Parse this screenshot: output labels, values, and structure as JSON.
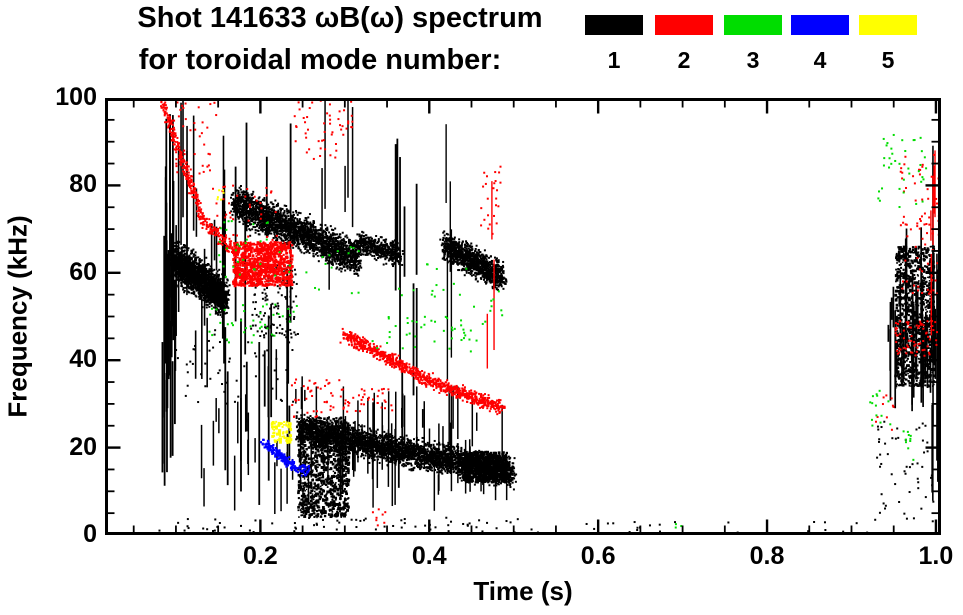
{
  "chart": {
    "title_line1": "Shot 141633 ωB(ω) spectrum",
    "title_line2": "for toroidal mode number:",
    "xlabel": "Time (s)",
    "ylabel": "Frequency (kHz)"
  },
  "chart_data": {
    "type": "scatter",
    "title": "Shot 141633 ωB(ω) spectrum for toroidal mode number",
    "xlabel": "Time (s)",
    "ylabel": "Frequency (kHz)",
    "xlim": [
      0.016,
      1.006
    ],
    "ylim": [
      0,
      100
    ],
    "grid": false,
    "x_major_ticks": [
      0.2,
      0.4,
      0.6,
      0.8,
      1.0
    ],
    "x_tick_labels": [
      "0.2",
      "0.4",
      "0.6",
      "0.8",
      "1.0"
    ],
    "x_minor_step": 0.05,
    "y_major_ticks": [
      0,
      20,
      40,
      60,
      80,
      100
    ],
    "y_tick_labels": [
      "0",
      "20",
      "40",
      "60",
      "80",
      "100"
    ],
    "y_minor_step": 5,
    "legend": {
      "position": "top-right",
      "entries": [
        {
          "label": "1",
          "color": "#000000"
        },
        {
          "label": "2",
          "color": "#ff0000"
        },
        {
          "label": "3",
          "color": "#00dd00"
        },
        {
          "label": "4",
          "color": "#0000ff"
        },
        {
          "label": "5",
          "color": "#ffff00"
        }
      ]
    },
    "clusters": [
      {
        "mode": 1,
        "type": "streaks",
        "t": [
          0.084,
          0.1
        ],
        "f": [
          8,
          100
        ],
        "n": 26,
        "w": 1.8,
        "bias": 0.55,
        "lmin": 0.1,
        "lvar": 0.55
      },
      {
        "mode": 1,
        "type": "track",
        "t": [
          0.098,
          0.158
        ],
        "f": [
          63,
          54
        ],
        "jf": 6,
        "jt": 0.006,
        "n": 2200,
        "s": 2
      },
      {
        "mode": 1,
        "type": "streaks",
        "t": [
          0.1,
          0.165
        ],
        "f": [
          25,
          100
        ],
        "n": 20,
        "w": 1.6
      },
      {
        "mode": 1,
        "type": "streaks",
        "t": [
          0.155,
          0.245
        ],
        "f": [
          5,
          100
        ],
        "n": 16,
        "w": 1.8
      },
      {
        "mode": 1,
        "type": "track",
        "t": [
          0.17,
          0.315
        ],
        "f": [
          76,
          63
        ],
        "jf": 5.5,
        "jt": 0.006,
        "n": 2400,
        "s": 2
      },
      {
        "mode": 1,
        "type": "track",
        "t": [
          0.315,
          0.365
        ],
        "f": [
          67,
          64
        ],
        "jf": 3.5,
        "n": 500,
        "s": 2
      },
      {
        "mode": 1,
        "type": "streaks",
        "t": [
          0.13,
          0.26
        ],
        "f": [
          4,
          45
        ],
        "n": 28,
        "w": 1.5,
        "lmin": 0.06,
        "lvar": 0.3
      },
      {
        "mode": 1,
        "type": "track",
        "t": [
          0.245,
          0.5
        ],
        "f": [
          24,
          14
        ],
        "jf": 4.5,
        "jt": 0.004,
        "n": 3600,
        "s": 2
      },
      {
        "mode": 1,
        "type": "blob",
        "t": [
          0.245,
          0.305
        ],
        "f": [
          4,
          27
        ],
        "n": 1000,
        "s": 2
      },
      {
        "mode": 1,
        "type": "streaks",
        "t": [
          0.25,
          0.5
        ],
        "f": [
          5,
          34
        ],
        "n": 60,
        "w": 1.5,
        "lmin": 0.1,
        "lvar": 0.5
      },
      {
        "mode": 1,
        "type": "streaks",
        "t": [
          0.358,
          0.388
        ],
        "f": [
          10,
          100
        ],
        "n": 9,
        "w": 1.8
      },
      {
        "mode": 1,
        "type": "streaks",
        "t": [
          0.27,
          0.31
        ],
        "f": [
          30,
          100
        ],
        "n": 6,
        "w": 1.5
      },
      {
        "mode": 1,
        "type": "streaks",
        "t": [
          0.418,
          0.432
        ],
        "f": [
          35,
          98
        ],
        "n": 4,
        "w": 1.4
      },
      {
        "mode": 1,
        "type": "track",
        "t": [
          0.418,
          0.487
        ],
        "f": [
          66,
          59
        ],
        "jf": 4.5,
        "n": 1200,
        "s": 2
      },
      {
        "mode": 1,
        "type": "blob",
        "t": [
          0.44,
          0.492
        ],
        "f": [
          12,
          19
        ],
        "n": 600,
        "s": 2
      },
      {
        "mode": 1,
        "type": "dots",
        "t": [
          0.07,
          0.53
        ],
        "f": [
          0.5,
          4
        ],
        "n": 70,
        "s": 2
      },
      {
        "mode": 1,
        "type": "dots",
        "t": [
          0.53,
          0.93
        ],
        "f": [
          0.5,
          3
        ],
        "n": 22,
        "s": 2
      },
      {
        "mode": 1,
        "type": "dots",
        "t": [
          0.1,
          0.24
        ],
        "f": [
          30,
          48
        ],
        "n": 60,
        "s": 2
      },
      {
        "mode": 1,
        "type": "dots",
        "t": [
          0.19,
          0.245
        ],
        "f": [
          45,
          62
        ],
        "n": 120,
        "s": 2
      },
      {
        "mode": 1,
        "type": "streaks",
        "t": [
          0.943,
          1.0
        ],
        "f": [
          28,
          72
        ],
        "n": 45,
        "w": 1.7,
        "bias": 0.5
      },
      {
        "mode": 1,
        "type": "blob",
        "t": [
          0.952,
          0.998
        ],
        "f": [
          34,
          66
        ],
        "n": 1000,
        "s": 2
      },
      {
        "mode": 1,
        "type": "streaks",
        "t": [
          0.992,
          1.005
        ],
        "f": [
          4,
          100
        ],
        "n": 9,
        "w": 1.6
      },
      {
        "mode": 1,
        "type": "dots",
        "t": [
          0.925,
          1.0
        ],
        "f": [
          3,
          26
        ],
        "n": 55,
        "s": 2
      },
      {
        "mode": 2,
        "type": "track",
        "t": [
          0.084,
          0.132
        ],
        "f": [
          99,
          72
        ],
        "jf": 2,
        "jt": 0.003,
        "n": 260,
        "s": 2
      },
      {
        "mode": 2,
        "type": "track",
        "t": [
          0.132,
          0.168
        ],
        "f": [
          72,
          65
        ],
        "jf": 2,
        "n": 110,
        "s": 2
      },
      {
        "mode": 2,
        "type": "blob",
        "t": [
          0.168,
          0.238
        ],
        "f": [
          57,
          67
        ],
        "n": 950,
        "s": 2
      },
      {
        "mode": 2,
        "type": "dots",
        "t": [
          0.24,
          0.31
        ],
        "f": [
          86,
          100
        ],
        "n": 55,
        "s": 2
      },
      {
        "mode": 2,
        "type": "dots",
        "t": [
          0.095,
          0.15
        ],
        "f": [
          82,
          100
        ],
        "n": 45,
        "s": 2
      },
      {
        "mode": 2,
        "type": "dots",
        "t": [
          0.14,
          0.22
        ],
        "f": [
          66,
          80
        ],
        "n": 45,
        "s": 2
      },
      {
        "mode": 2,
        "type": "track",
        "t": [
          0.298,
          0.402
        ],
        "f": [
          46,
          35
        ],
        "jf": 2.2,
        "n": 480,
        "s": 2
      },
      {
        "mode": 2,
        "type": "track",
        "t": [
          0.402,
          0.487
        ],
        "f": [
          35,
          29
        ],
        "jf": 2.2,
        "n": 400,
        "s": 2
      },
      {
        "mode": 2,
        "type": "dots",
        "t": [
          0.235,
          0.3
        ],
        "f": [
          27,
          36
        ],
        "n": 45,
        "s": 2
      },
      {
        "mode": 2,
        "type": "dots",
        "t": [
          0.3,
          0.36
        ],
        "f": [
          28,
          34
        ],
        "n": 35,
        "s": 2
      },
      {
        "mode": 2,
        "type": "streaks",
        "t": [
          0.468,
          0.478
        ],
        "f": [
          30,
          84
        ],
        "n": 3,
        "w": 1.4
      },
      {
        "mode": 2,
        "type": "dots",
        "t": [
          0.46,
          0.485
        ],
        "f": [
          68,
          85
        ],
        "n": 25,
        "s": 2
      },
      {
        "mode": 2,
        "type": "dots",
        "t": [
          0.952,
          1.002
        ],
        "f": [
          41,
          49
        ],
        "n": 70,
        "s": 2
      },
      {
        "mode": 2,
        "type": "dots",
        "t": [
          0.958,
          1.004
        ],
        "f": [
          55,
          88
        ],
        "n": 80,
        "s": 2
      },
      {
        "mode": 2,
        "type": "streaks",
        "t": [
          0.994,
          1.005
        ],
        "f": [
          40,
          88
        ],
        "n": 5,
        "w": 1.4
      },
      {
        "mode": 2,
        "type": "dots",
        "t": [
          0.33,
          0.35
        ],
        "f": [
          1,
          6
        ],
        "n": 8,
        "s": 2
      },
      {
        "mode": 2,
        "type": "dots",
        "t": [
          0.925,
          0.95
        ],
        "f": [
          24,
          32
        ],
        "n": 10,
        "s": 2
      },
      {
        "mode": 3,
        "type": "dots",
        "t": [
          0.138,
          0.245
        ],
        "f": [
          44,
          53
        ],
        "n": 40,
        "s": 2
      },
      {
        "mode": 3,
        "type": "dots",
        "t": [
          0.148,
          0.235
        ],
        "f": [
          59,
          72
        ],
        "n": 32,
        "s": 2
      },
      {
        "mode": 3,
        "type": "dots",
        "t": [
          0.25,
          0.32
        ],
        "f": [
          55,
          66
        ],
        "n": 14,
        "s": 2
      },
      {
        "mode": 3,
        "type": "dots",
        "t": [
          0.33,
          0.46
        ],
        "f": [
          42,
          50
        ],
        "n": 42,
        "s": 2
      },
      {
        "mode": 3,
        "type": "dots",
        "t": [
          0.36,
          0.45
        ],
        "f": [
          54,
          62
        ],
        "n": 14,
        "s": 2
      },
      {
        "mode": 3,
        "type": "dots",
        "t": [
          0.45,
          0.49
        ],
        "f": [
          48,
          58
        ],
        "n": 10,
        "s": 2
      },
      {
        "mode": 3,
        "type": "dots",
        "t": [
          0.93,
          0.99
        ],
        "f": [
          75,
          92
        ],
        "n": 38,
        "s": 2
      },
      {
        "mode": 3,
        "type": "dots",
        "t": [
          0.922,
          0.948
        ],
        "f": [
          25,
          33
        ],
        "n": 14,
        "s": 2
      },
      {
        "mode": 3,
        "type": "dots",
        "t": [
          0.958,
          0.978
        ],
        "f": [
          17,
          24
        ],
        "n": 10,
        "s": 2
      },
      {
        "mode": 3,
        "type": "dots",
        "t": [
          0.688,
          0.712
        ],
        "f": [
          1,
          3
        ],
        "n": 3,
        "s": 2
      },
      {
        "mode": 4,
        "type": "track",
        "t": [
          0.205,
          0.245
        ],
        "f": [
          21,
          15
        ],
        "jf": 1.2,
        "n": 150,
        "s": 2.2
      },
      {
        "mode": 4,
        "type": "dots",
        "t": [
          0.245,
          0.258
        ],
        "f": [
          13.5,
          16
        ],
        "n": 30,
        "s": 2
      },
      {
        "mode": 5,
        "type": "blob",
        "t": [
          0.214,
          0.236
        ],
        "f": [
          21,
          26
        ],
        "n": 70,
        "s": 2.2
      },
      {
        "mode": 5,
        "type": "dots",
        "t": [
          0.147,
          0.158
        ],
        "f": [
          76,
          80
        ],
        "n": 6,
        "s": 2
      }
    ]
  }
}
